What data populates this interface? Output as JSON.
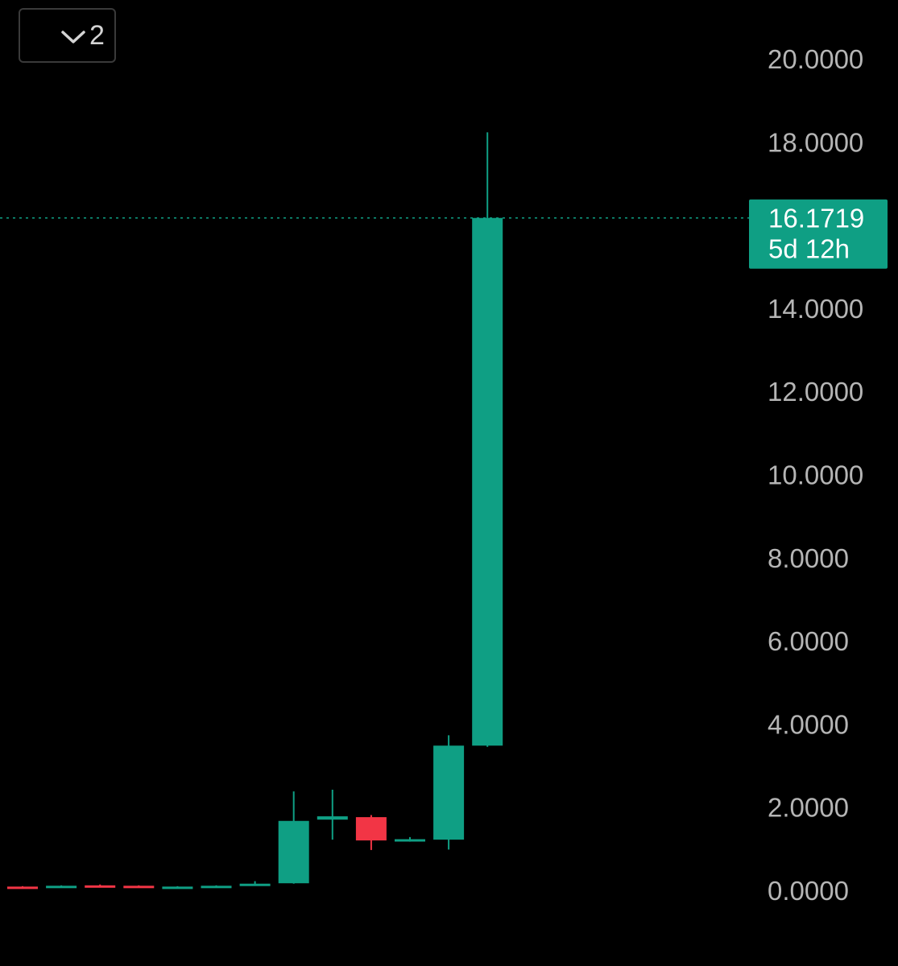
{
  "toolbar": {
    "collapse_count": "2",
    "collapse_icon": "chevron-down-icon"
  },
  "colors": {
    "up": "#0f9f84",
    "down": "#f23545",
    "background": "#000000",
    "axis_text": "#b5b5b5",
    "price_line": "#0f9f84"
  },
  "chart_data": {
    "type": "candlestick",
    "ylim": [
      0,
      20
    ],
    "y_ticks": [
      {
        "value": 0,
        "label": "0.0000"
      },
      {
        "value": 2,
        "label": "2.0000"
      },
      {
        "value": 4,
        "label": "4.0000"
      },
      {
        "value": 6,
        "label": "6.0000"
      },
      {
        "value": 8,
        "label": "8.0000"
      },
      {
        "value": 10,
        "label": "10.0000"
      },
      {
        "value": 12,
        "label": "12.0000"
      },
      {
        "value": 14,
        "label": "14.0000"
      },
      {
        "value": 18,
        "label": "18.0000"
      },
      {
        "value": 20,
        "label": "20.0000"
      }
    ],
    "candles": [
      {
        "open": 0.09,
        "close": 0.08,
        "high": 0.1,
        "low": 0.07
      },
      {
        "open": 0.09,
        "close": 0.11,
        "high": 0.12,
        "low": 0.08
      },
      {
        "open": 0.12,
        "close": 0.1,
        "high": 0.14,
        "low": 0.09
      },
      {
        "open": 0.11,
        "close": 0.09,
        "high": 0.12,
        "low": 0.08
      },
      {
        "open": 0.08,
        "close": 0.09,
        "high": 0.1,
        "low": 0.07
      },
      {
        "open": 0.09,
        "close": 0.11,
        "high": 0.12,
        "low": 0.08
      },
      {
        "open": 0.14,
        "close": 0.16,
        "high": 0.22,
        "low": 0.13
      },
      {
        "open": 0.17,
        "close": 1.67,
        "high": 2.38,
        "low": 0.16
      },
      {
        "open": 1.7,
        "close": 1.78,
        "high": 2.42,
        "low": 1.22
      },
      {
        "open": 1.76,
        "close": 1.2,
        "high": 1.81,
        "low": 0.97
      },
      {
        "open": 1.19,
        "close": 1.23,
        "high": 1.28,
        "low": 1.17
      },
      {
        "open": 1.22,
        "close": 3.48,
        "high": 3.73,
        "low": 0.98
      },
      {
        "open": 3.48,
        "close": 16.1719,
        "high": 18.23,
        "low": 3.45
      }
    ],
    "last_price": {
      "value": 16.1719,
      "label": "16.1719",
      "countdown": "5d 12h"
    }
  }
}
